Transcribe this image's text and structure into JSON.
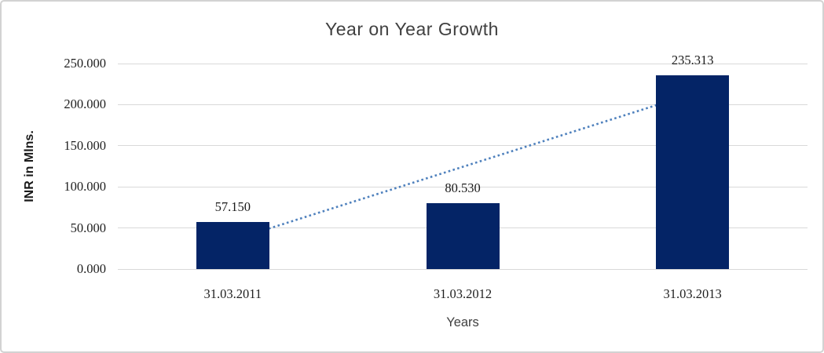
{
  "chart_data": {
    "type": "bar",
    "title": "Year on Year Growth",
    "xlabel": "Years",
    "ylabel": "INR in Mlns.",
    "categories": [
      "31.03.2011",
      "31.03.2012",
      "31.03.2013"
    ],
    "values": [
      57.15,
      80.53,
      235.313
    ],
    "value_labels": [
      "57.150",
      "80.530",
      "235.313"
    ],
    "yticks": [
      "0.000",
      "50.000",
      "100.000",
      "150.000",
      "200.000",
      "250.000"
    ],
    "ylim": [
      0,
      250
    ],
    "grid": "horizontal gridlines on",
    "legend_position": "none",
    "trendline": {
      "type": "linear",
      "style": "dotted"
    }
  },
  "colors": {
    "bar": "#042466",
    "trendline": "#4f81bd",
    "gridline": "#d9d9d9",
    "title_text": "#404040",
    "axis_text": "#1f1f1f",
    "panel_border": "#d2d2d2"
  }
}
